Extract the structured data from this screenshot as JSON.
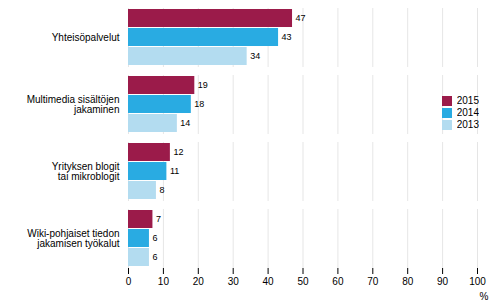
{
  "chart_data": {
    "type": "bar",
    "orientation": "horizontal",
    "categories": [
      "Yhteisöpalvelut",
      "Multimedia sisältöjen\njakaminen",
      "Yrityksen blogit\ntai mikroblogit",
      "Wiki-pohjaiset tiedon\njakamisen työkalut"
    ],
    "series": [
      {
        "name": "2015",
        "color": "#9B1B4A",
        "values": [
          47,
          19,
          12,
          7
        ]
      },
      {
        "name": "2014",
        "color": "#29ABE2",
        "values": [
          43,
          18,
          11,
          6
        ]
      },
      {
        "name": "2013",
        "color": "#B3DCF0",
        "values": [
          34,
          14,
          8,
          6
        ]
      }
    ],
    "xlabel": "%",
    "xlim": [
      0,
      100
    ],
    "xticks": [
      0,
      10,
      20,
      30,
      40,
      50,
      60,
      70,
      80,
      90,
      100
    ],
    "grid": true,
    "data_labels": true,
    "legend": "right"
  }
}
